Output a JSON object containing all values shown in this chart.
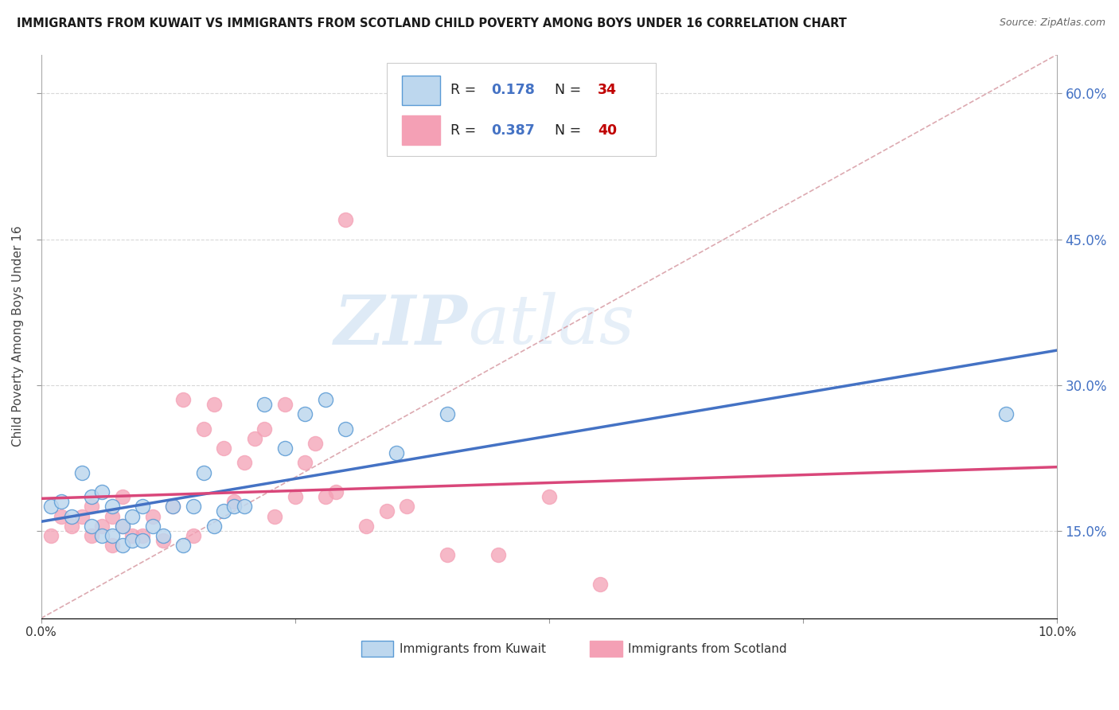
{
  "title": "IMMIGRANTS FROM KUWAIT VS IMMIGRANTS FROM SCOTLAND CHILD POVERTY AMONG BOYS UNDER 16 CORRELATION CHART",
  "source": "Source: ZipAtlas.com",
  "ylabel": "Child Poverty Among Boys Under 16",
  "xmin": 0.0,
  "xmax": 0.1,
  "ymin": 0.06,
  "ymax": 0.64,
  "yticks": [
    0.15,
    0.3,
    0.45,
    0.6
  ],
  "right_ytick_labels": [
    "15.0%",
    "30.0%",
    "45.0%",
    "60.0%"
  ],
  "kuwait_color_edge": "#5b9bd5",
  "kuwait_color_fill": "#bdd7ee",
  "scotland_color_edge": "#f4a0b5",
  "scotland_color_fill": "#f4a0b5",
  "kuwait_R": "0.178",
  "kuwait_N": "34",
  "scotland_R": "0.387",
  "scotland_N": "40",
  "legend_color": "#4472c4",
  "N_color": "#c00000",
  "kuwait_line_color": "#4472c4",
  "scotland_line_color": "#d9477a",
  "diagonal_color": "#d9a0a8",
  "background_color": "#ffffff",
  "grid_color": "#d8d8d8",
  "watermark_zip": "ZIP",
  "watermark_atlas": "atlas",
  "kuwait_scatter_x": [
    0.001,
    0.002,
    0.003,
    0.004,
    0.005,
    0.005,
    0.006,
    0.006,
    0.007,
    0.007,
    0.008,
    0.008,
    0.009,
    0.009,
    0.01,
    0.01,
    0.011,
    0.012,
    0.013,
    0.014,
    0.015,
    0.016,
    0.017,
    0.018,
    0.019,
    0.02,
    0.022,
    0.024,
    0.026,
    0.028,
    0.03,
    0.035,
    0.04,
    0.095
  ],
  "kuwait_scatter_y": [
    0.175,
    0.18,
    0.165,
    0.21,
    0.155,
    0.185,
    0.145,
    0.19,
    0.145,
    0.175,
    0.135,
    0.155,
    0.14,
    0.165,
    0.14,
    0.175,
    0.155,
    0.145,
    0.175,
    0.135,
    0.175,
    0.21,
    0.155,
    0.17,
    0.175,
    0.175,
    0.28,
    0.235,
    0.27,
    0.285,
    0.255,
    0.23,
    0.27,
    0.27
  ],
  "scotland_scatter_x": [
    0.001,
    0.002,
    0.003,
    0.004,
    0.005,
    0.005,
    0.006,
    0.007,
    0.007,
    0.008,
    0.008,
    0.009,
    0.01,
    0.011,
    0.012,
    0.013,
    0.014,
    0.015,
    0.016,
    0.017,
    0.018,
    0.019,
    0.02,
    0.021,
    0.022,
    0.023,
    0.024,
    0.025,
    0.026,
    0.027,
    0.028,
    0.029,
    0.03,
    0.032,
    0.034,
    0.036,
    0.04,
    0.045,
    0.05,
    0.055
  ],
  "scotland_scatter_y": [
    0.145,
    0.165,
    0.155,
    0.165,
    0.145,
    0.175,
    0.155,
    0.135,
    0.165,
    0.155,
    0.185,
    0.145,
    0.145,
    0.165,
    0.14,
    0.175,
    0.285,
    0.145,
    0.255,
    0.28,
    0.235,
    0.18,
    0.22,
    0.245,
    0.255,
    0.165,
    0.28,
    0.185,
    0.22,
    0.24,
    0.185,
    0.19,
    0.47,
    0.155,
    0.17,
    0.175,
    0.125,
    0.125,
    0.185,
    0.095
  ]
}
